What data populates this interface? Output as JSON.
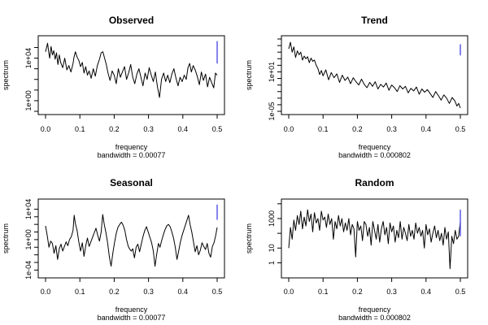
{
  "chart_data": [
    {
      "id": "observed",
      "type": "line",
      "title": "Observed",
      "xlabel": "frequency",
      "ylabel": "spectrum",
      "subtitle": "bandwidth = 0.00077",
      "x_ticks": [
        "0.0",
        "0.1",
        "0.2",
        "0.3",
        "0.4",
        "0.5"
      ],
      "y_scale": "log10",
      "y_labeled_ticks": [
        "1e+00",
        "1e+04"
      ],
      "ylim_log10": [
        -1,
        5.8
      ],
      "ci_bar_log10": [
        3.5,
        5.6
      ],
      "x": [
        0.0,
        0.006,
        0.01,
        0.012,
        0.016,
        0.02,
        0.024,
        0.028,
        0.032,
        0.036,
        0.04,
        0.044,
        0.05,
        0.056,
        0.062,
        0.068,
        0.074,
        0.08,
        0.083,
        0.087,
        0.092,
        0.097,
        0.102,
        0.107,
        0.112,
        0.117,
        0.122,
        0.127,
        0.133,
        0.139,
        0.145,
        0.151,
        0.157,
        0.162,
        0.167,
        0.172,
        0.177,
        0.182,
        0.188,
        0.194,
        0.2,
        0.206,
        0.212,
        0.218,
        0.224,
        0.23,
        0.236,
        0.242,
        0.248,
        0.254,
        0.26,
        0.266,
        0.272,
        0.278,
        0.284,
        0.29,
        0.296,
        0.302,
        0.308,
        0.314,
        0.32,
        0.326,
        0.332,
        0.338,
        0.344,
        0.35,
        0.356,
        0.362,
        0.368,
        0.374,
        0.38,
        0.386,
        0.392,
        0.398,
        0.404,
        0.41,
        0.415,
        0.42,
        0.425,
        0.43,
        0.436,
        0.442,
        0.448,
        0.454,
        0.46,
        0.466,
        0.472,
        0.478,
        0.484,
        0.49,
        0.495,
        0.5
      ],
      "y_log10": [
        4.6,
        5.4,
        4.4,
        4.0,
        5.1,
        4.3,
        4.7,
        3.9,
        4.5,
        3.4,
        4.3,
        3.6,
        3.1,
        4.0,
        2.9,
        3.3,
        2.7,
        3.5,
        4.1,
        4.6,
        4.1,
        3.8,
        3.2,
        3.6,
        2.6,
        3.2,
        2.4,
        2.8,
        2.1,
        3.0,
        2.3,
        3.3,
        3.9,
        4.5,
        4.6,
        4.0,
        3.4,
        2.6,
        1.9,
        2.8,
        2.4,
        1.6,
        3.0,
        2.2,
        2.7,
        3.2,
        2.0,
        2.6,
        3.4,
        2.2,
        1.6,
        2.5,
        3.0,
        2.2,
        1.4,
        2.6,
        2.0,
        3.1,
        2.4,
        1.8,
        2.7,
        1.3,
        0.3,
        2.0,
        2.6,
        1.8,
        2.4,
        1.7,
        2.5,
        3.0,
        2.1,
        1.4,
        2.2,
        1.8,
        2.4,
        2.0,
        3.1,
        3.5,
        2.7,
        3.3,
        2.9,
        2.3,
        1.5,
        2.7,
        1.9,
        2.5,
        1.3,
        2.2,
        1.7,
        1.2,
        2.6,
        2.4
      ]
    },
    {
      "id": "trend",
      "type": "line",
      "title": "Trend",
      "xlabel": "frequency",
      "ylabel": "spectrum",
      "subtitle": "bandwidth = 0.000802",
      "x_ticks": [
        "0.0",
        "0.1",
        "0.2",
        "0.3",
        "0.4",
        "0.5"
      ],
      "y_scale": "log10",
      "y_labeled_ticks": [
        "1e-05",
        "1e+01"
      ],
      "ylim_log10": [
        -5,
        6
      ],
      "ci_bar_log10": [
        3.5,
        5.2
      ],
      "x": [
        0.0,
        0.005,
        0.01,
        0.015,
        0.02,
        0.025,
        0.03,
        0.035,
        0.04,
        0.045,
        0.05,
        0.055,
        0.06,
        0.065,
        0.07,
        0.075,
        0.08,
        0.085,
        0.09,
        0.095,
        0.1,
        0.108,
        0.116,
        0.124,
        0.132,
        0.14,
        0.148,
        0.156,
        0.164,
        0.172,
        0.18,
        0.188,
        0.196,
        0.204,
        0.212,
        0.22,
        0.228,
        0.236,
        0.244,
        0.252,
        0.26,
        0.268,
        0.276,
        0.284,
        0.292,
        0.3,
        0.308,
        0.316,
        0.324,
        0.332,
        0.34,
        0.348,
        0.356,
        0.364,
        0.372,
        0.38,
        0.388,
        0.396,
        0.404,
        0.412,
        0.42,
        0.428,
        0.436,
        0.444,
        0.452,
        0.46,
        0.468,
        0.476,
        0.484,
        0.49,
        0.495,
        0.5
      ],
      "y_log10": [
        4.5,
        5.5,
        4.0,
        4.8,
        3.2,
        4.2,
        3.6,
        4.0,
        2.8,
        3.4,
        3.0,
        3.3,
        2.4,
        3.1,
        2.6,
        2.8,
        2.0,
        1.5,
        0.6,
        1.2,
        0.4,
        1.3,
        -0.2,
        0.9,
        0.1,
        0.7,
        -0.6,
        0.5,
        -0.3,
        0.2,
        -0.8,
        0.1,
        -0.5,
        -1.0,
        -0.1,
        -0.9,
        -1.4,
        -0.6,
        -1.2,
        -0.5,
        -1.6,
        -0.9,
        -1.3,
        -0.7,
        -1.8,
        -1.0,
        -1.4,
        -2.0,
        -1.1,
        -1.6,
        -1.2,
        -2.2,
        -1.5,
        -1.9,
        -1.3,
        -2.4,
        -1.6,
        -2.1,
        -1.7,
        -2.3,
        -2.9,
        -2.0,
        -2.6,
        -3.3,
        -2.5,
        -3.0,
        -3.8,
        -2.9,
        -3.4,
        -4.2,
        -3.8,
        -4.5
      ]
    },
    {
      "id": "seasonal",
      "type": "line",
      "title": "Seasonal",
      "xlabel": "frequency",
      "ylabel": "spectrum",
      "subtitle": "bandwidth = 0.00077",
      "x_ticks": [
        "0.0",
        "0.1",
        "0.2",
        "0.3",
        "0.4",
        "0.5"
      ],
      "y_scale": "log10",
      "y_labeled_ticks": [
        "1e-04",
        "1e+00",
        "1e+04"
      ],
      "ylim_log10": [
        -4.6,
        4.9
      ],
      "ci_bar_log10": [
        2.6,
        4.6
      ],
      "x": [
        0.0,
        0.005,
        0.01,
        0.015,
        0.02,
        0.025,
        0.03,
        0.035,
        0.04,
        0.045,
        0.05,
        0.055,
        0.06,
        0.065,
        0.07,
        0.075,
        0.08,
        0.0833,
        0.087,
        0.092,
        0.097,
        0.102,
        0.107,
        0.112,
        0.117,
        0.122,
        0.127,
        0.132,
        0.137,
        0.142,
        0.147,
        0.152,
        0.157,
        0.162,
        0.1667,
        0.171,
        0.176,
        0.181,
        0.186,
        0.191,
        0.196,
        0.201,
        0.206,
        0.211,
        0.216,
        0.221,
        0.226,
        0.231,
        0.236,
        0.241,
        0.246,
        0.25,
        0.254,
        0.259,
        0.264,
        0.269,
        0.274,
        0.279,
        0.284,
        0.289,
        0.294,
        0.299,
        0.304,
        0.309,
        0.314,
        0.319,
        0.324,
        0.329,
        0.3333,
        0.338,
        0.343,
        0.348,
        0.353,
        0.358,
        0.363,
        0.368,
        0.373,
        0.378,
        0.383,
        0.388,
        0.393,
        0.398,
        0.403,
        0.408,
        0.4167,
        0.421,
        0.426,
        0.431,
        0.436,
        0.441,
        0.446,
        0.451,
        0.456,
        0.461,
        0.466,
        0.471,
        0.476,
        0.481,
        0.486,
        0.491,
        0.496,
        0.5
      ],
      "y_log10": [
        1.8,
        0.5,
        -1.0,
        -0.2,
        -0.5,
        -1.8,
        -0.8,
        -2.6,
        -1.2,
        -0.6,
        -1.5,
        -0.9,
        -0.3,
        -0.8,
        0.0,
        0.4,
        1.2,
        3.2,
        2.1,
        1.2,
        -0.3,
        -1.5,
        -0.4,
        -2.2,
        -0.8,
        0.2,
        -0.9,
        -0.3,
        0.3,
        0.9,
        1.5,
        0.6,
        -0.2,
        1.0,
        3.3,
        2.0,
        0.9,
        -0.5,
        -2.3,
        -3.5,
        -1.8,
        -0.4,
        0.8,
        1.6,
        2.0,
        2.3,
        1.9,
        1.2,
        0.0,
        -0.9,
        -1.3,
        -1.5,
        -1.2,
        -2.4,
        -1.0,
        -0.6,
        -1.6,
        -0.6,
        0.4,
        1.2,
        1.7,
        1.0,
        0.3,
        -0.4,
        -1.5,
        -3.5,
        -1.9,
        -0.5,
        -1.0,
        -0.2,
        0.6,
        1.3,
        1.8,
        2.0,
        1.7,
        1.0,
        0.2,
        -1.0,
        -2.6,
        -1.5,
        -0.3,
        0.6,
        1.3,
        2.0,
        3.2,
        2.0,
        1.0,
        -0.3,
        -1.6,
        -0.8,
        -2.0,
        -1.4,
        -0.4,
        -0.9,
        -1.3,
        -0.5,
        -1.8,
        -2.3,
        -0.9,
        -0.4,
        0.6,
        1.6
      ]
    },
    {
      "id": "random",
      "type": "line",
      "title": "Random",
      "xlabel": "frequency",
      "ylabel": "spectrum",
      "subtitle": "bandwidth = 0.000802",
      "x_ticks": [
        "0.0",
        "0.1",
        "0.2",
        "0.3",
        "0.4",
        "0.5"
      ],
      "y_scale": "log10",
      "y_labeled_ticks": [
        "1",
        "10",
        "1000"
      ],
      "ylim_log10": [
        -0.8,
        4.1
      ],
      "ci_bar_log10": [
        1.8,
        3.6
      ],
      "x": [
        0.0,
        0.005,
        0.01,
        0.015,
        0.02,
        0.025,
        0.03,
        0.035,
        0.04,
        0.045,
        0.05,
        0.055,
        0.06,
        0.065,
        0.07,
        0.075,
        0.08,
        0.085,
        0.09,
        0.095,
        0.1,
        0.105,
        0.11,
        0.115,
        0.12,
        0.125,
        0.13,
        0.135,
        0.14,
        0.145,
        0.15,
        0.155,
        0.16,
        0.165,
        0.17,
        0.175,
        0.18,
        0.185,
        0.19,
        0.195,
        0.2,
        0.205,
        0.21,
        0.215,
        0.22,
        0.225,
        0.23,
        0.235,
        0.24,
        0.245,
        0.25,
        0.255,
        0.26,
        0.265,
        0.27,
        0.275,
        0.28,
        0.285,
        0.29,
        0.295,
        0.3,
        0.305,
        0.31,
        0.315,
        0.32,
        0.325,
        0.33,
        0.335,
        0.34,
        0.345,
        0.35,
        0.355,
        0.36,
        0.365,
        0.37,
        0.375,
        0.38,
        0.385,
        0.39,
        0.395,
        0.4,
        0.405,
        0.41,
        0.415,
        0.42,
        0.425,
        0.43,
        0.435,
        0.44,
        0.445,
        0.45,
        0.455,
        0.46,
        0.465,
        0.47,
        0.475,
        0.48,
        0.485,
        0.49,
        0.495,
        0.5
      ],
      "y_log10": [
        1.0,
        2.4,
        1.6,
        2.9,
        2.2,
        3.2,
        2.6,
        3.5,
        2.3,
        3.1,
        2.5,
        3.6,
        2.8,
        3.3,
        2.1,
        3.4,
        2.7,
        3.0,
        2.2,
        3.5,
        2.9,
        3.1,
        2.4,
        3.3,
        2.6,
        3.0,
        1.6,
        2.8,
        2.3,
        3.2,
        2.5,
        3.0,
        2.1,
        2.7,
        2.2,
        3.0,
        1.9,
        2.6,
        2.3,
        0.4,
        2.8,
        2.2,
        2.5,
        1.5,
        2.8,
        2.6,
        1.8,
        2.4,
        1.2,
        2.8,
        2.2,
        1.6,
        2.6,
        1.4,
        2.3,
        2.8,
        1.9,
        2.4,
        1.3,
        2.7,
        2.1,
        2.5,
        1.4,
        2.2,
        1.7,
        2.8,
        1.6,
        2.4,
        2.0,
        1.5,
        2.6,
        1.8,
        2.2,
        1.6,
        2.7,
        2.0,
        2.4,
        1.8,
        2.2,
        1.0,
        2.6,
        1.9,
        2.3,
        1.4,
        2.0,
        2.5,
        1.7,
        2.2,
        1.5,
        2.0,
        1.2,
        2.4,
        1.6,
        2.1,
        -0.4,
        1.8,
        1.3,
        2.2,
        1.6,
        1.8,
        2.8
      ]
    }
  ]
}
